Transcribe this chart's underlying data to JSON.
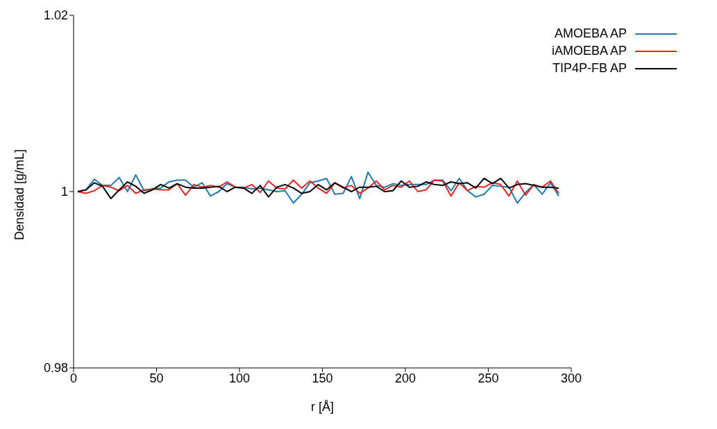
{
  "chart_data": {
    "type": "line",
    "xlabel": "r [Å]",
    "ylabel": "Densidad [g/mL]",
    "x": [
      2.5,
      7.5,
      12.5,
      17.5,
      22.5,
      27.5,
      32.5,
      37.5,
      42.5,
      47.5,
      52.5,
      57.5,
      62.5,
      67.5,
      72.5,
      77.5,
      82.5,
      87.5,
      92.5,
      97.5,
      102.5,
      107.5,
      112.5,
      117.5,
      122.5,
      127.5,
      132.5,
      137.5,
      142.5,
      147.5,
      152.5,
      157.5,
      162.5,
      167.5,
      172.5,
      177.5,
      182.5,
      187.5,
      192.5,
      197.5,
      202.5,
      207.5,
      212.5,
      217.5,
      222.5,
      227.5,
      232.5,
      237.5,
      242.5,
      247.5,
      252.5,
      257.5,
      262.5,
      267.5,
      272.5,
      277.5,
      282.5,
      287.5,
      292.5
    ],
    "series": [
      {
        "name": "AMOEBA AP",
        "color": "#1f77b4",
        "values": [
          1.0,
          1.0002,
          1.0014,
          1.0007,
          1.0007,
          1.0016,
          1.0,
          1.0019,
          1.0001,
          1.0003,
          1.0004,
          1.0011,
          1.0013,
          1.0013,
          1.0005,
          1.001,
          0.9995,
          1.0,
          1.0009,
          1.0005,
          1.0005,
          1.0003,
          1.0004,
          1.0002,
          1.0,
          1.0001,
          0.9987,
          0.9997,
          1.001,
          1.0012,
          1.0015,
          0.9997,
          0.9998,
          1.0017,
          0.9992,
          1.0022,
          1.0007,
          1.0005,
          1.0009,
          1.0007,
          1.0008,
          1.0008,
          1.0008,
          1.0013,
          1.0013,
          1.0001,
          1.0015,
          1.0001,
          0.9994,
          0.9997,
          1.0007,
          1.0006,
          1.0005,
          0.9987,
          0.9999,
          1.0008,
          0.9997,
          1.001,
          0.9995
        ]
      },
      {
        "name": "iAMOEBA AP",
        "color": "#e8231e",
        "values": [
          1.0,
          0.9998,
          1.0001,
          1.0007,
          1.0005,
          1.0001,
          1.0007,
          0.9998,
          1.0002,
          1.0003,
          1.0002,
          1.0002,
          1.0009,
          0.9996,
          1.0008,
          1.0005,
          1.0007,
          1.0005,
          1.0011,
          1.0005,
          1.0004,
          1.0008,
          0.9999,
          1.0012,
          1.0004,
          1.0003,
          1.0013,
          1.0004,
          1.0012,
          1.0004,
          0.9998,
          1.001,
          1.0004,
          1.0007,
          0.9998,
          1.0004,
          1.0012,
          1.0002,
          1.0007,
          1.0005,
          1.0012,
          1.0,
          1.0002,
          1.0013,
          1.0012,
          0.9995,
          1.001,
          1.0001,
          1.0006,
          1.0005,
          1.001,
          1.0008,
          0.9995,
          1.0012,
          0.9996,
          1.0008,
          1.0005,
          1.0012,
          0.9998
        ]
      },
      {
        "name": "TIP4P-FB AP",
        "color": "#000000",
        "values": [
          1.0,
          1.0002,
          1.001,
          1.0006,
          0.9992,
          1.0002,
          1.0011,
          1.0006,
          0.9998,
          1.0002,
          1.0008,
          1.0004,
          1.0009,
          1.0005,
          1.0004,
          1.0004,
          1.0005,
          1.0006,
          1.0,
          1.0005,
          1.0004,
          0.9998,
          1.0007,
          0.9994,
          1.0005,
          1.0008,
          1.0004,
          0.9998,
          1.0,
          1.0008,
          1.0002,
          1.001,
          1.0005,
          1.0,
          1.0005,
          1.0005,
          1.0006,
          1.0,
          1.0001,
          1.0012,
          1.0005,
          1.0006,
          1.0011,
          1.0008,
          1.0007,
          1.0011,
          1.0009,
          1.001,
          1.0004,
          1.0015,
          1.0009,
          1.0015,
          1.0004,
          1.0008,
          1.0009,
          1.0007,
          1.0005,
          1.0005,
          1.0004
        ]
      }
    ],
    "xlim": [
      0,
      300
    ],
    "xticks": [
      0,
      50,
      100,
      150,
      200,
      250,
      300
    ],
    "ylim": [
      0.98,
      1.02
    ],
    "yticks": [
      0.98,
      1,
      1.02
    ],
    "grid": false,
    "legend": "top right",
    "marker": "none",
    "line_style": "solid"
  }
}
